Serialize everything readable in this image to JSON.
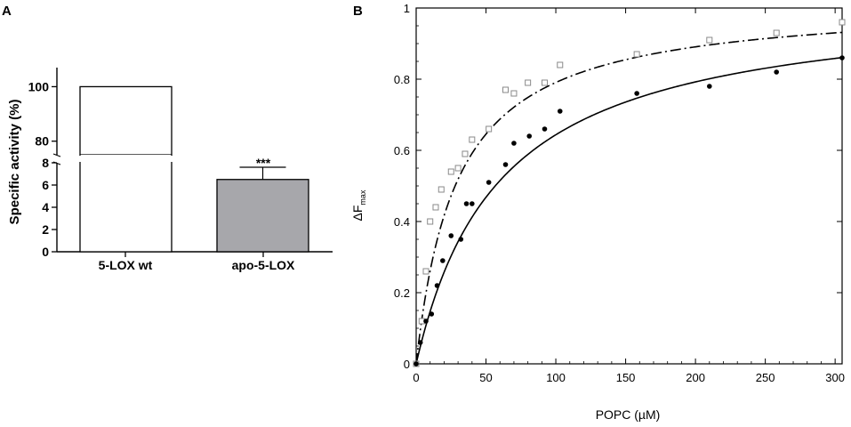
{
  "chart_data": [
    {
      "panel": "A",
      "type": "bar",
      "ylabel": "Specific activity (%)",
      "categories": [
        "5-LOX wt",
        "apo-5-LOX"
      ],
      "values": [
        100,
        6.5
      ],
      "error": [
        0,
        1.1
      ],
      "bar_colors": [
        "#ffffff",
        "#a7a7ab"
      ],
      "significance": [
        "",
        "***"
      ],
      "axis_break": true,
      "ylim_lower": [
        0,
        8
      ],
      "ylim_upper": [
        75,
        107
      ],
      "yticks_lower": [
        "0",
        "2",
        "4",
        "6",
        "8"
      ],
      "yticks_upper": [
        "80",
        "100"
      ],
      "grid": false
    },
    {
      "panel": "B",
      "type": "scatter",
      "xlabel": "POPC (µM)",
      "ylabel_main": "ΔF",
      "ylabel_sub": "max",
      "xlim": [
        0,
        305
      ],
      "ylim": [
        0,
        1
      ],
      "xticks": [
        "0",
        "50",
        "100",
        "150",
        "200",
        "250",
        "300"
      ],
      "yticks": [
        "0",
        "0.2",
        "0.4",
        "0.6",
        "0.8",
        "1"
      ],
      "grid": false,
      "series": [
        {
          "marker": "open-square",
          "color": "#8a8a8a",
          "fit_line": "dash-dot",
          "fit": {
            "model": "hyperbolic",
            "fmax": 1.02,
            "kd": 29
          },
          "points": [
            [
              0,
              0.0
            ],
            [
              4,
              0.12
            ],
            [
              7,
              0.26
            ],
            [
              10,
              0.4
            ],
            [
              14,
              0.44
            ],
            [
              18,
              0.49
            ],
            [
              25,
              0.54
            ],
            [
              30,
              0.55
            ],
            [
              35,
              0.59
            ],
            [
              40,
              0.63
            ],
            [
              52,
              0.66
            ],
            [
              64,
              0.77
            ],
            [
              70,
              0.76
            ],
            [
              80,
              0.79
            ],
            [
              92,
              0.79
            ],
            [
              103,
              0.84
            ],
            [
              158,
              0.87
            ],
            [
              210,
              0.91
            ],
            [
              258,
              0.93
            ],
            [
              305,
              0.96
            ]
          ]
        },
        {
          "marker": "filled-circle",
          "color": "#000000",
          "fit_line": "solid",
          "fit": {
            "model": "hyperbolic",
            "fmax": 1.03,
            "kd": 60
          },
          "points": [
            [
              0,
              0.0
            ],
            [
              3,
              0.06
            ],
            [
              7,
              0.12
            ],
            [
              11,
              0.14
            ],
            [
              15,
              0.22
            ],
            [
              19,
              0.29
            ],
            [
              25,
              0.36
            ],
            [
              32,
              0.35
            ],
            [
              36,
              0.45
            ],
            [
              40,
              0.45
            ],
            [
              52,
              0.51
            ],
            [
              64,
              0.56
            ],
            [
              70,
              0.62
            ],
            [
              81,
              0.64
            ],
            [
              92,
              0.66
            ],
            [
              103,
              0.71
            ],
            [
              158,
              0.76
            ],
            [
              210,
              0.78
            ],
            [
              258,
              0.82
            ],
            [
              305,
              0.86
            ]
          ]
        }
      ]
    }
  ]
}
